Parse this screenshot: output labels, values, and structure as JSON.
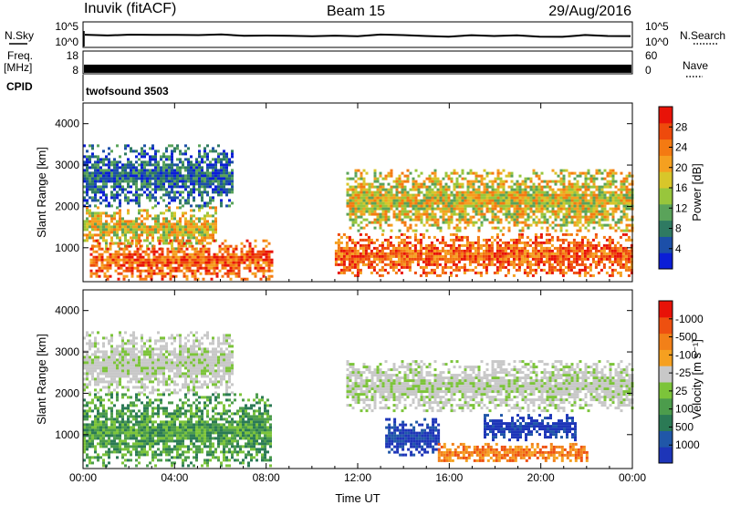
{
  "header": {
    "station": "Inuvik (fitACF)",
    "beam": "Beam 15",
    "date": "29/Aug/2016"
  },
  "noise_panel": {
    "left_label": "N.Sky",
    "right_label": "N.Search",
    "left_ticks": [
      "10^5",
      "10^0"
    ],
    "right_ticks": [
      "10^5",
      "10^0"
    ],
    "nsky_level": [
      3.2,
      3.5,
      3.4,
      3.3,
      3.6,
      3.4,
      3.5,
      3.3,
      3.4,
      3.2,
      3.1,
      3.3,
      3.2,
      3.4,
      3.3,
      3.2,
      3.0,
      3.1,
      3.2,
      3.3,
      3.1,
      3.0,
      3.2,
      3.1,
      3.3
    ]
  },
  "freq_panel": {
    "left_label_1": "Freq.",
    "left_label_2": "[MHz]",
    "right_label": "Nave",
    "left_ticks": [
      "18",
      "8"
    ],
    "right_ticks": [
      "60",
      "0"
    ],
    "freq_mhz": 11,
    "nave": 28
  },
  "cpid_panel": {
    "label": "CPID",
    "program": "twofsound 3503"
  },
  "chart_data": [
    {
      "type": "heatmap",
      "parameter": "Power",
      "ylabel": "Slant Range [km]",
      "xlabel": "",
      "x_ticks": [
        "00:00",
        "04:00",
        "08:00",
        "12:00",
        "16:00",
        "20:00",
        "00:00"
      ],
      "xlim_hours": [
        0,
        24
      ],
      "ylim_km": [
        180,
        4500
      ],
      "y_ticks": [
        1000,
        2000,
        3000,
        4000
      ],
      "colorbar": {
        "label": "Power [dB]",
        "tick_labels": [
          "4",
          "8",
          "12",
          "16",
          "20",
          "24",
          "28"
        ],
        "colors": [
          "#0b1ed6",
          "#1c4fa8",
          "#2f7a62",
          "#5aa35a",
          "#98c63c",
          "#d8c62a",
          "#f5a020",
          "#f47a12",
          "#ee4a0c",
          "#e81308"
        ]
      },
      "echo_regions": [
        {
          "t_start": 0.0,
          "t_end": 5.8,
          "r_low": 1000,
          "r_high": 2000,
          "level": "mid"
        },
        {
          "t_start": 0.3,
          "t_end": 8.2,
          "r_low": 250,
          "r_high": 1200,
          "level": "high"
        },
        {
          "t_start": 0.0,
          "t_end": 6.5,
          "r_low": 2000,
          "r_high": 3500,
          "level": "low"
        },
        {
          "t_start": 11.0,
          "t_end": 24.0,
          "r_low": 350,
          "r_high": 1350,
          "level": "high"
        },
        {
          "t_start": 11.5,
          "t_end": 24.0,
          "r_low": 1400,
          "r_high": 2900,
          "level": "mid"
        }
      ]
    },
    {
      "type": "heatmap",
      "parameter": "Velocity",
      "ylabel": "Slant Range [km]",
      "xlabel": "Time UT",
      "x_ticks": [
        "00:00",
        "04:00",
        "08:00",
        "12:00",
        "16:00",
        "20:00",
        "00:00"
      ],
      "xlim_hours": [
        0,
        24
      ],
      "ylim_km": [
        180,
        4500
      ],
      "y_ticks": [
        1000,
        2000,
        3000,
        4000
      ],
      "colorbar": {
        "label": "Velocity [m s⁻¹]",
        "tick_labels": [
          "1000",
          "500",
          "100",
          "25",
          "-25",
          "-100",
          "-500",
          "-1000"
        ],
        "colors": [
          "#1d35b8",
          "#2057a8",
          "#2b7a55",
          "#4c9c4c",
          "#7cc43a",
          "#c8c8c8",
          "#f5a020",
          "#f28018",
          "#ee5010",
          "#e81208"
        ]
      },
      "echo_regions": [
        {
          "t_start": 0.0,
          "t_end": 6.5,
          "r_low": 2000,
          "r_high": 3500,
          "velocity": "near-zero"
        },
        {
          "t_start": 0.0,
          "t_end": 8.2,
          "r_low": 250,
          "r_high": 2000,
          "velocity": "low-positive"
        },
        {
          "t_start": 13.2,
          "t_end": 15.5,
          "r_low": 500,
          "r_high": 1400,
          "velocity": "high-positive"
        },
        {
          "t_start": 15.5,
          "t_end": 22.0,
          "r_low": 350,
          "r_high": 800,
          "velocity": "negative"
        },
        {
          "t_start": 17.5,
          "t_end": 21.5,
          "r_low": 900,
          "r_high": 1500,
          "velocity": "high-positive"
        },
        {
          "t_start": 11.5,
          "t_end": 24.0,
          "r_low": 1600,
          "r_high": 2800,
          "velocity": "near-zero"
        }
      ]
    }
  ]
}
